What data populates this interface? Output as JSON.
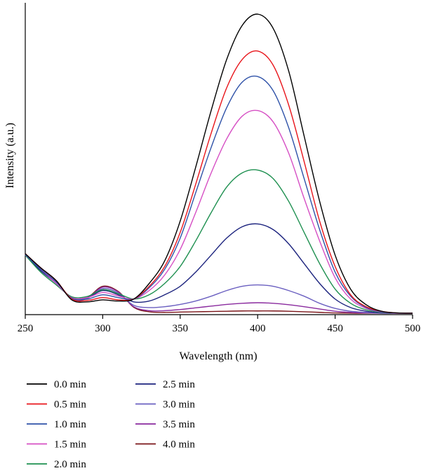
{
  "chart_data": {
    "type": "line",
    "xlabel": "Wavelength (nm)",
    "ylabel": "Intensity (a.u.)",
    "xlim": [
      250,
      500
    ],
    "ylim": [
      0,
      1.1
    ],
    "xticks": [
      250,
      300,
      350,
      400,
      450,
      500
    ],
    "yticks_shown": false,
    "grid": false,
    "legend_position": "bottom-left, two columns",
    "x": [
      250,
      260,
      270,
      280,
      290,
      300,
      310,
      320,
      330,
      340,
      350,
      360,
      370,
      380,
      390,
      400,
      410,
      420,
      430,
      440,
      450,
      460,
      470,
      480,
      490,
      500
    ],
    "series": [
      {
        "name": "0.0 min",
        "color": "#000000",
        "values": [
          0.215,
          0.165,
          0.12,
          0.052,
          0.045,
          0.052,
          0.048,
          0.055,
          0.11,
          0.19,
          0.33,
          0.52,
          0.72,
          0.9,
          1.02,
          1.06,
          1.01,
          0.86,
          0.63,
          0.4,
          0.21,
          0.09,
          0.035,
          0.012,
          0.006,
          0.005
        ]
      },
      {
        "name": "0.5 min",
        "color": "#e8151b",
        "values": [
          0.215,
          0.165,
          0.12,
          0.055,
          0.05,
          0.06,
          0.052,
          0.055,
          0.1,
          0.17,
          0.29,
          0.46,
          0.64,
          0.8,
          0.9,
          0.93,
          0.88,
          0.74,
          0.54,
          0.33,
          0.17,
          0.07,
          0.028,
          0.012,
          0.006,
          0.005
        ]
      },
      {
        "name": "1.0 min",
        "color": "#2f52a8",
        "values": [
          0.212,
          0.16,
          0.115,
          0.058,
          0.055,
          0.07,
          0.06,
          0.055,
          0.095,
          0.16,
          0.27,
          0.43,
          0.59,
          0.73,
          0.82,
          0.84,
          0.79,
          0.66,
          0.48,
          0.3,
          0.15,
          0.065,
          0.025,
          0.01,
          0.006,
          0.005
        ]
      },
      {
        "name": "1.5 min",
        "color": "#d64fc4",
        "values": [
          0.212,
          0.16,
          0.11,
          0.06,
          0.06,
          0.078,
          0.066,
          0.055,
          0.085,
          0.14,
          0.23,
          0.36,
          0.5,
          0.62,
          0.7,
          0.72,
          0.68,
          0.57,
          0.41,
          0.26,
          0.13,
          0.055,
          0.022,
          0.009,
          0.005,
          0.005
        ]
      },
      {
        "name": "2.0 min",
        "color": "#1e9050",
        "values": [
          0.21,
          0.15,
          0.105,
          0.063,
          0.064,
          0.088,
          0.074,
          0.055,
          0.07,
          0.11,
          0.17,
          0.26,
          0.36,
          0.45,
          0.5,
          0.51,
          0.48,
          0.4,
          0.29,
          0.18,
          0.09,
          0.04,
          0.017,
          0.008,
          0.005,
          0.005
        ]
      },
      {
        "name": "2.5 min",
        "color": "#1c237e",
        "values": [
          0.21,
          0.155,
          0.11,
          0.06,
          0.06,
          0.085,
          0.07,
          0.045,
          0.048,
          0.07,
          0.1,
          0.15,
          0.21,
          0.27,
          0.31,
          0.32,
          0.3,
          0.25,
          0.18,
          0.11,
          0.055,
          0.025,
          0.012,
          0.006,
          0.005,
          0.005
        ]
      },
      {
        "name": "3.0 min",
        "color": "#6a5fc0",
        "values": [
          0.21,
          0.16,
          0.115,
          0.057,
          0.058,
          0.092,
          0.076,
          0.033,
          0.025,
          0.028,
          0.036,
          0.048,
          0.065,
          0.085,
          0.1,
          0.105,
          0.1,
          0.085,
          0.065,
          0.04,
          0.022,
          0.012,
          0.008,
          0.005,
          0.005,
          0.005
        ]
      },
      {
        "name": "3.5 min",
        "color": "#8a2a9e",
        "values": [
          0.212,
          0.165,
          0.12,
          0.055,
          0.058,
          0.097,
          0.08,
          0.028,
          0.014,
          0.014,
          0.018,
          0.024,
          0.03,
          0.036,
          0.04,
          0.042,
          0.04,
          0.035,
          0.028,
          0.02,
          0.012,
          0.008,
          0.006,
          0.005,
          0.005,
          0.005
        ]
      },
      {
        "name": "4.0 min",
        "color": "#7a1418",
        "values": [
          0.212,
          0.165,
          0.12,
          0.055,
          0.06,
          0.1,
          0.082,
          0.026,
          0.01,
          0.008,
          0.009,
          0.01,
          0.011,
          0.012,
          0.013,
          0.013,
          0.013,
          0.012,
          0.01,
          0.008,
          0.006,
          0.005,
          0.005,
          0.005,
          0.005,
          0.005
        ]
      }
    ]
  }
}
